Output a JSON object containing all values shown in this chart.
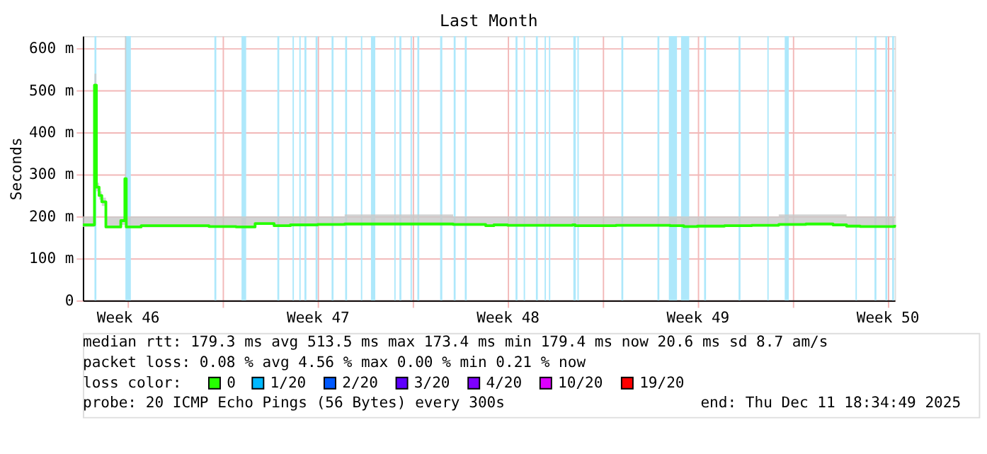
{
  "chart_data": {
    "type": "line",
    "title": "Last Month",
    "ylabel": "Seconds",
    "legend_title": "loss color:",
    "legend": "bottom",
    "grid": true,
    "xlim": [
      "2025-11-11T20:24",
      "2025-12-11T18:34"
    ],
    "xticks": [
      {
        "value": "2025-11-13T12:00",
        "label": "Week 46"
      },
      {
        "value": "2025-11-17",
        "label": null
      },
      {
        "value": "2025-11-20T12:00",
        "label": "Week 47"
      },
      {
        "value": "2025-11-24",
        "label": null
      },
      {
        "value": "2025-11-27T12:00",
        "label": "Week 48"
      },
      {
        "value": "2025-12-01",
        "label": null
      },
      {
        "value": "2025-12-04T12:00",
        "label": "Week 49"
      },
      {
        "value": "2025-12-08",
        "label": null
      },
      {
        "value": "2025-12-11T12:00",
        "label": "Week 50"
      }
    ],
    "ylim": [
      0,
      630
    ],
    "yticks": [
      0,
      {
        "value": 100,
        "label": "100 m"
      },
      {
        "value": 200,
        "label": "200 m"
      },
      {
        "value": 300,
        "label": "300 m"
      },
      {
        "value": 400,
        "label": "400 m"
      },
      {
        "value": 500,
        "label": "500 m"
      },
      {
        "value": 600,
        "label": "600 m"
      }
    ],
    "series": [
      {
        "name": "0",
        "color": "#26ff00",
        "x": [
          "2025-11-11T20:24",
          "2025-11-12T04:48",
          "2025-11-12T06:43",
          "2025-11-12T08:24",
          "2025-11-12T10:48",
          "2025-11-12T13:12",
          "2025-11-12T15:36",
          "2025-11-12T16:48",
          "2025-11-13T04:48",
          "2025-11-13T06:00",
          "2025-11-13T09:36",
          "2025-11-13T10:48",
          "2025-11-14T00:00",
          "2025-11-16T12:00",
          "2025-11-17T12:00",
          "2025-11-18T02:24",
          "2025-11-18T04:48",
          "2025-11-18T12:00",
          "2025-11-18T21:36",
          "2025-11-19T00:00",
          "2025-11-19T12:00",
          "2025-11-20T12:00",
          "2025-11-21T12:00",
          "2025-11-23T12:00",
          "2025-11-25T12:00",
          "2025-11-26T16:48",
          "2025-11-27T00:00",
          "2025-11-27T12:00",
          "2025-11-29T21:36",
          "2025-11-30T00:00",
          "2025-12-01T12:00",
          "2025-12-03T12:00",
          "2025-12-04T00:00",
          "2025-12-04T12:00",
          "2025-12-05T12:00",
          "2025-12-06T12:00",
          "2025-12-07T12:00",
          "2025-12-08T12:00",
          "2025-12-09T12:00",
          "2025-12-10T00:00",
          "2025-12-10T12:00",
          "2025-12-11T18:34"
        ],
        "values": [
          180,
          180,
          513,
          270,
          250,
          235,
          235,
          175,
          175,
          190,
          290,
          175,
          178,
          176,
          175,
          175,
          183,
          183,
          178,
          178,
          180,
          181,
          182,
          182,
          181,
          178,
          180,
          179,
          180,
          178,
          179,
          178,
          176,
          177,
          178,
          179,
          181,
          182,
          180,
          177,
          176,
          180
        ],
        "lower": [
          175,
          175,
          500,
          260,
          240,
          225,
          225,
          172,
          172,
          180,
          280,
          172,
          174,
          173,
          172,
          172,
          180,
          180,
          175,
          175,
          177,
          178,
          179,
          179,
          178,
          175,
          177,
          176,
          177,
          175,
          176,
          175,
          173,
          174,
          175,
          176,
          178,
          179,
          177,
          174,
          173,
          177
        ],
        "upper": [
          200,
          200,
          540,
          280,
          260,
          245,
          245,
          200,
          200,
          200,
          630,
          200,
          200,
          200,
          200,
          200,
          200,
          200,
          200,
          200,
          200,
          200,
          205,
          205,
          200,
          200,
          200,
          200,
          200,
          200,
          200,
          200,
          200,
          200,
          200,
          200,
          205,
          205,
          205,
          200,
          200,
          200
        ]
      },
      {
        "name": "1/20",
        "color": "#00b8ff"
      },
      {
        "name": "2/20",
        "color": "#0059ff"
      },
      {
        "name": "3/20",
        "color": "#5e00ff"
      },
      {
        "name": "4/20",
        "color": "#7e00ff"
      },
      {
        "name": "10/20",
        "color": "#dd00ff"
      },
      {
        "name": "19/20",
        "color": "#ff0000"
      }
    ],
    "bands": [
      {
        "axis": "x",
        "from": "2025-11-12T06:43",
        "to": "2025-11-12T08:24",
        "color": "#aee8fb"
      },
      {
        "axis": "x",
        "from": "2025-11-13T10:05",
        "to": "2025-11-13T14:53",
        "color": "#aee8fb"
      },
      {
        "axis": "x",
        "from": "2025-11-16T16:48",
        "to": "2025-11-16T18:29",
        "color": "#aee8fb"
      },
      {
        "axis": "x",
        "from": "2025-11-17T16:48",
        "to": "2025-11-17T20:53",
        "color": "#aee8fb"
      },
      {
        "axis": "x",
        "from": "2025-11-19T00:29",
        "to": "2025-11-19T02:10",
        "color": "#aee8fb"
      },
      {
        "axis": "x",
        "from": "2025-11-19T13:55",
        "to": "2025-11-19T15:07",
        "color": "#aee8fb"
      },
      {
        "axis": "x",
        "from": "2025-11-19T19:55",
        "to": "2025-11-19T21:07",
        "color": "#aee8fb"
      },
      {
        "axis": "x",
        "from": "2025-11-20T00:29",
        "to": "2025-11-20T02:10",
        "color": "#aee8fb"
      },
      {
        "axis": "x",
        "from": "2025-11-20T10:19",
        "to": "2025-11-20T12:00",
        "color": "#aee8fb"
      },
      {
        "axis": "x",
        "from": "2025-11-21T00:29",
        "to": "2025-11-21T02:10",
        "color": "#aee8fb"
      },
      {
        "axis": "x",
        "from": "2025-11-21T12:29",
        "to": "2025-11-21T14:10",
        "color": "#aee8fb"
      },
      {
        "axis": "x",
        "from": "2025-11-22T02:24",
        "to": "2025-11-22T03:36",
        "color": "#aee8fb"
      },
      {
        "axis": "x",
        "from": "2025-11-22T11:17",
        "to": "2025-11-22T15:07",
        "color": "#aee8fb"
      },
      {
        "axis": "x",
        "from": "2025-11-23T07:55",
        "to": "2025-11-23T09:07",
        "color": "#aee8fb"
      },
      {
        "axis": "x",
        "from": "2025-11-23T12:29",
        "to": "2025-11-23T14:10",
        "color": "#aee8fb"
      },
      {
        "axis": "x",
        "from": "2025-11-23T22:19",
        "to": "2025-11-23T23:31",
        "color": "#aee8fb"
      },
      {
        "axis": "x",
        "from": "2025-11-24T04:19",
        "to": "2025-11-24T06:00",
        "color": "#aee8fb"
      },
      {
        "axis": "x",
        "from": "2025-11-25T00:29",
        "to": "2025-11-25T02:24",
        "color": "#aee8fb"
      },
      {
        "axis": "x",
        "from": "2025-11-25T12:29",
        "to": "2025-11-25T14:10",
        "color": "#aee8fb"
      },
      {
        "axis": "x",
        "from": "2025-11-25T22:19",
        "to": "2025-11-26T00:00",
        "color": "#aee8fb"
      },
      {
        "axis": "x",
        "from": "2025-11-27T19:12",
        "to": "2025-11-27T20:53",
        "color": "#aee8fb"
      },
      {
        "axis": "x",
        "from": "2025-11-28T02:24",
        "to": "2025-11-28T03:36",
        "color": "#aee8fb"
      },
      {
        "axis": "x",
        "from": "2025-11-28T13:12",
        "to": "2025-11-28T14:53",
        "color": "#aee8fb"
      },
      {
        "axis": "x",
        "from": "2025-11-28T20:53",
        "to": "2025-11-28T22:05",
        "color": "#aee8fb"
      },
      {
        "axis": "x",
        "from": "2025-11-29T00:43",
        "to": "2025-11-29T01:55",
        "color": "#aee8fb"
      },
      {
        "axis": "x",
        "from": "2025-11-29T22:19",
        "to": "2025-11-30T00:29",
        "color": "#aee8fb"
      },
      {
        "axis": "x",
        "from": "2025-11-30T01:55",
        "to": "2025-11-30T03:07",
        "color": "#aee8fb"
      },
      {
        "axis": "x",
        "from": "2025-12-01T16:48",
        "to": "2025-12-01T18:29",
        "color": "#aee8fb"
      },
      {
        "axis": "x",
        "from": "2025-12-03T00:43",
        "to": "2025-12-03T02:24",
        "color": "#aee8fb"
      },
      {
        "axis": "x",
        "from": "2025-12-03T10:48",
        "to": "2025-12-03T18:00",
        "color": "#aee8fb"
      },
      {
        "axis": "x",
        "from": "2025-12-03T21:36",
        "to": "2025-12-04T04:48",
        "color": "#aee8fb"
      },
      {
        "axis": "x",
        "from": "2025-12-04T18:00",
        "to": "2025-12-04T19:41",
        "color": "#aee8fb"
      },
      {
        "axis": "x",
        "from": "2025-12-06T00:29",
        "to": "2025-12-06T02:10",
        "color": "#aee8fb"
      },
      {
        "axis": "x",
        "from": "2025-12-07T01:55",
        "to": "2025-12-07T03:07",
        "color": "#aee8fb"
      },
      {
        "axis": "x",
        "from": "2025-12-07T17:17",
        "to": "2025-12-07T20:53",
        "color": "#aee8fb"
      },
      {
        "axis": "x",
        "from": "2025-12-10T07:55",
        "to": "2025-12-10T09:07",
        "color": "#aee8fb"
      },
      {
        "axis": "x",
        "from": "2025-12-11T00:43",
        "to": "2025-12-11T02:24",
        "color": "#aee8fb"
      },
      {
        "axis": "x",
        "from": "2025-12-11T10:19",
        "to": "2025-12-11T12:00",
        "color": "#aee8fb"
      },
      {
        "axis": "x",
        "from": "2025-12-11T16:19",
        "to": "2025-12-11T18:00",
        "color": "#aee8fb"
      }
    ],
    "annotations": [
      "median rtt:  179.3 ms avg  513.5 ms max  173.4 ms min  179.4 ms now  20.6 ms sd  8.7   am/s",
      "packet loss: 0.08 % avg  4.56 % max  0.00 % min  0.21 % now",
      "probe:       20 ICMP Echo Pings (56 Bytes) every 300s",
      "end: Thu Dec 11 18:34:49 2025"
    ]
  }
}
